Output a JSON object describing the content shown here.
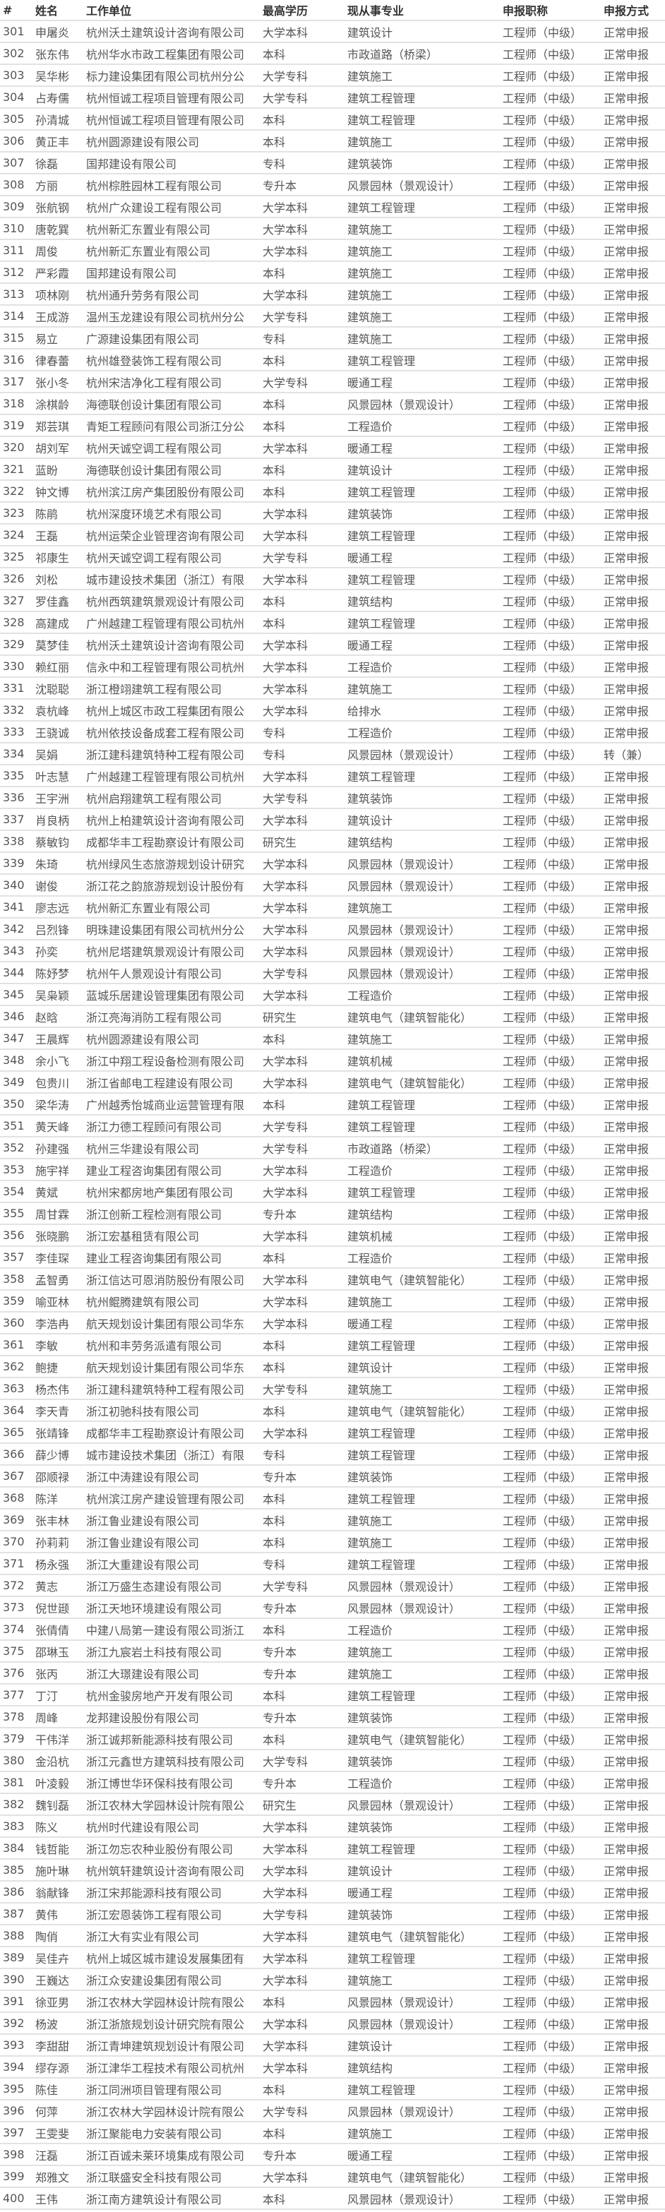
{
  "headers": [
    "#",
    "姓名",
    "工作单位",
    "最高学历",
    "现从事专业",
    "申报职称",
    "申报方式"
  ],
  "rows": [
    [
      "301",
      "申屠炎",
      "杭州沃土建筑设计咨询有限公司",
      "大学本科",
      "建筑设计",
      "工程师（中级）",
      "正常申报"
    ],
    [
      "302",
      "张东伟",
      "杭州华水市政工程集团有限公司",
      "本科",
      "市政道路（桥梁）",
      "工程师（中级）",
      "正常申报"
    ],
    [
      "303",
      "吴华彬",
      "标力建设集团有限公司杭州分公",
      "大学专科",
      "建筑施工",
      "工程师（中级）",
      "正常申报"
    ],
    [
      "304",
      "占寿儒",
      "杭州恒诚工程项目管理有限公司",
      "大学专科",
      "建筑工程管理",
      "工程师（中级）",
      "正常申报"
    ],
    [
      "305",
      "孙清城",
      "杭州恒诚工程项目管理有限公司",
      "本科",
      "建筑工程管理",
      "工程师（中级）",
      "正常申报"
    ],
    [
      "306",
      "黄正丰",
      "杭州圆源建设有限公司",
      "本科",
      "建筑施工",
      "工程师（中级）",
      "正常申报"
    ],
    [
      "307",
      "徐磊",
      "国邦建设有限公司",
      "专科",
      "建筑装饰",
      "工程师（中级）",
      "正常申报"
    ],
    [
      "308",
      "方丽",
      "杭州棕胜园林工程有限公司",
      "专升本",
      "风景园林（景观设计）",
      "工程师（中级）",
      "正常申报"
    ],
    [
      "309",
      "张航钢",
      "杭州广众建设工程有限公司",
      "大学本科",
      "建筑工程管理",
      "工程师（中级）",
      "正常申报"
    ],
    [
      "310",
      "唐乾巽",
      "杭州新汇东置业有限公司",
      "大学本科",
      "建筑施工",
      "工程师（中级）",
      "正常申报"
    ],
    [
      "311",
      "周俊",
      "杭州新汇东置业有限公司",
      "大学本科",
      "建筑施工",
      "工程师（中级）",
      "正常申报"
    ],
    [
      "312",
      "严彩霞",
      "国邦建设有限公司",
      "本科",
      "建筑施工",
      "工程师（中级）",
      "正常申报"
    ],
    [
      "313",
      "项林刚",
      "杭州通升劳务有限公司",
      "大学本科",
      "建筑施工",
      "工程师（中级）",
      "正常申报"
    ],
    [
      "314",
      "王成游",
      "温州玉龙建设有限公司杭州分公",
      "大学专科",
      "建筑施工",
      "工程师（中级）",
      "正常申报"
    ],
    [
      "315",
      "易立",
      "广源建设集团有限公司",
      "专科",
      "建筑施工",
      "工程师（中级）",
      "正常申报"
    ],
    [
      "316",
      "律春蕾",
      "杭州雄登装饰工程有限公司",
      "本科",
      "建筑工程管理",
      "工程师（中级）",
      "正常申报"
    ],
    [
      "317",
      "张小冬",
      "杭州宋洁净化工程有限公司",
      "大学专科",
      "暖通工程",
      "工程师（中级）",
      "正常申报"
    ],
    [
      "318",
      "涂棋龄",
      "海德联创设计集团有限公司",
      "本科",
      "风景园林（景观设计）",
      "工程师（中级）",
      "正常申报"
    ],
    [
      "319",
      "郑芸琪",
      "青矩工程顾问有限公司浙江分公",
      "本科",
      "工程造价",
      "工程师（中级）",
      "正常申报"
    ],
    [
      "320",
      "胡刘军",
      "杭州天诚空调工程有限公司",
      "大学本科",
      "暖通工程",
      "工程师（中级）",
      "正常申报"
    ],
    [
      "321",
      "蓝盼",
      "海德联创设计集团有限公司",
      "本科",
      "建筑设计",
      "工程师（中级）",
      "正常申报"
    ],
    [
      "322",
      "钟文博",
      "杭州滨江房产集团股份有限公司",
      "本科",
      "建筑工程管理",
      "工程师（中级）",
      "正常申报"
    ],
    [
      "323",
      "陈鹃",
      "杭州深度环境艺术有限公司",
      "大学本科",
      "建筑装饰",
      "工程师（中级）",
      "正常申报"
    ],
    [
      "324",
      "王磊",
      "杭州运荣企业管理咨询有限公司",
      "大学本科",
      "建筑工程管理",
      "工程师（中级）",
      "正常申报"
    ],
    [
      "325",
      "祁康生",
      "杭州天诚空调工程有限公司",
      "大学专科",
      "暖通工程",
      "工程师（中级）",
      "正常申报"
    ],
    [
      "326",
      "刘松",
      "城市建设技术集团（浙江）有限",
      "大学本科",
      "建筑工程管理",
      "工程师（中级）",
      "正常申报"
    ],
    [
      "327",
      "罗佳鑫",
      "杭州西筑建筑景观设计有限公司",
      "本科",
      "建筑结构",
      "工程师（中级）",
      "正常申报"
    ],
    [
      "328",
      "高建成",
      "广州越建工程管理有限公司杭州",
      "本科",
      "建筑工程管理",
      "工程师（中级）",
      "正常申报"
    ],
    [
      "329",
      "莫梦佳",
      "杭州沃土建筑设计咨询有限公司",
      "大学本科",
      "暖通工程",
      "工程师（中级）",
      "正常申报"
    ],
    [
      "330",
      "赖红丽",
      "信永中和工程管理有限公司杭州",
      "大学本科",
      "工程造价",
      "工程师（中级）",
      "正常申报"
    ],
    [
      "331",
      "沈聪聪",
      "浙江橙翊建筑工程有限公司",
      "大学本科",
      "建筑施工",
      "工程师（中级）",
      "正常申报"
    ],
    [
      "332",
      "袁杭峰",
      "杭州上城区市政工程集团有限公",
      "大学本科",
      "给排水",
      "工程师（中级）",
      "正常申报"
    ],
    [
      "333",
      "王骁诚",
      "杭州依技设备成套工程有限公司",
      "专科",
      "工程造价",
      "工程师（中级）",
      "正常申报"
    ],
    [
      "334",
      "吴娟",
      "浙江建科建筑特种工程有限公司",
      "专科",
      "风景园林（景观设计）",
      "工程师（中级）",
      "转（兼）"
    ],
    [
      "335",
      "叶志慧",
      "广州越建工程管理有限公司杭州",
      "大学本科",
      "建筑工程管理",
      "工程师（中级）",
      "正常申报"
    ],
    [
      "336",
      "王宇洲",
      "杭州启翔建筑工程有限公司",
      "大学专科",
      "建筑装饰",
      "工程师（中级）",
      "正常申报"
    ],
    [
      "337",
      "肖良柄",
      "杭州上柏建筑设计咨询有限公司",
      "大学本科",
      "建筑设计",
      "工程师（中级）",
      "正常申报"
    ],
    [
      "338",
      "蔡敏钧",
      "成都华丰工程勘察设计有限公司",
      "研究生",
      "建筑结构",
      "工程师（中级）",
      "正常申报"
    ],
    [
      "339",
      "朱琦",
      "杭州绿风生态旅游规划设计研究",
      "大学本科",
      "风景园林（景观设计）",
      "工程师（中级）",
      "正常申报"
    ],
    [
      "340",
      "谢俊",
      "浙江花之韵旅游规划设计股份有",
      "大学本科",
      "风景园林（景观设计）",
      "工程师（中级）",
      "正常申报"
    ],
    [
      "341",
      "廖志远",
      "杭州新汇东置业有限公司",
      "大学本科",
      "建筑施工",
      "工程师（中级）",
      "正常申报"
    ],
    [
      "342",
      "吕烈锋",
      "明珠建设集团有限公司杭州分公",
      "大学本科",
      "风景园林（景观设计）",
      "工程师（中级）",
      "正常申报"
    ],
    [
      "343",
      "孙奕",
      "杭州尼塔建筑景观设计有限公司",
      "大学本科",
      "风景园林（景观设计）",
      "工程师（中级）",
      "正常申报"
    ],
    [
      "344",
      "陈妤梦",
      "杭州午人景观设计有限公司",
      "大学专科",
      "风景园林（景观设计）",
      "工程师（中级）",
      "正常申报"
    ],
    [
      "345",
      "吴枭颖",
      "蓝城乐居建设管理集团有限公司",
      "大学本科",
      "工程造价",
      "工程师（中级）",
      "正常申报"
    ],
    [
      "346",
      "赵晗",
      "浙江亮海消防工程有限公司",
      "研究生",
      "建筑电气（建筑智能化）",
      "工程师（中级）",
      "正常申报"
    ],
    [
      "347",
      "王晨辉",
      "杭州圆源建设有限公司",
      "本科",
      "建筑施工",
      "工程师（中级）",
      "正常申报"
    ],
    [
      "348",
      "余小飞",
      "浙江中翔工程设备检测有限公司",
      "大学本科",
      "建筑机械",
      "工程师（中级）",
      "正常申报"
    ],
    [
      "349",
      "包贵川",
      "浙江省邮电工程建设有限公司",
      "大学本科",
      "建筑电气（建筑智能化）",
      "工程师（中级）",
      "正常申报"
    ],
    [
      "350",
      "梁华涛",
      "广州越秀怡城商业运营管理有限",
      "本科",
      "建筑工程管理",
      "工程师（中级）",
      "正常申报"
    ],
    [
      "351",
      "黄天峰",
      "浙江力德工程顾问有限公司",
      "大学专科",
      "建筑工程管理",
      "工程师（中级）",
      "正常申报"
    ],
    [
      "352",
      "孙建强",
      "杭州三华建设有限公司",
      "大学专科",
      "市政道路（桥梁）",
      "工程师（中级）",
      "正常申报"
    ],
    [
      "353",
      "施宇祥",
      "建业工程咨询集团有限公司",
      "大学本科",
      "工程造价",
      "工程师（中级）",
      "正常申报"
    ],
    [
      "354",
      "黄斌",
      "杭州宋都房地产集团有限公司",
      "大学本科",
      "建筑工程管理",
      "工程师（中级）",
      "正常申报"
    ],
    [
      "355",
      "周甘霖",
      "浙江创新工程检测有限公司",
      "专升本",
      "建筑结构",
      "工程师（中级）",
      "正常申报"
    ],
    [
      "356",
      "张晓鹏",
      "浙江宏基租赁有限公司",
      "大学本科",
      "建筑机械",
      "工程师（中级）",
      "正常申报"
    ],
    [
      "357",
      "李佳琛",
      "建业工程咨询集团有限公司",
      "本科",
      "工程造价",
      "工程师（中级）",
      "正常申报"
    ],
    [
      "358",
      "孟智勇",
      "浙江信达可恩消防股份有限公司",
      "大学本科",
      "建筑电气（建筑智能化）",
      "工程师（中级）",
      "正常申报"
    ],
    [
      "359",
      "喻亚林",
      "杭州鲲腾建筑有限公司",
      "大学本科",
      "建筑施工",
      "工程师（中级）",
      "正常申报"
    ],
    [
      "360",
      "李浩冉",
      "航天规划设计集团有限公司华东",
      "大学本科",
      "暖通工程",
      "工程师（中级）",
      "正常申报"
    ],
    [
      "361",
      "李敏",
      "杭州和丰劳务派遣有限公司",
      "本科",
      "建筑工程管理",
      "工程师（中级）",
      "正常申报"
    ],
    [
      "362",
      "鲍捷",
      "航天规划设计集团有限公司华东",
      "本科",
      "建筑设计",
      "工程师（中级）",
      "正常申报"
    ],
    [
      "363",
      "杨杰伟",
      "浙江建科建筑特种工程有限公司",
      "大学专科",
      "建筑施工",
      "工程师（中级）",
      "正常申报"
    ],
    [
      "364",
      "李天青",
      "浙江初驰科技有限公司",
      "本科",
      "建筑电气（建筑智能化）",
      "工程师（中级）",
      "正常申报"
    ],
    [
      "365",
      "张靖锋",
      "成都华丰工程勘察设计有限公司",
      "大学本科",
      "建筑工程管理",
      "工程师（中级）",
      "正常申报"
    ],
    [
      "366",
      "薛少博",
      "城市建设技术集团（浙江）有限",
      "专科",
      "建筑工程管理",
      "工程师（中级）",
      "正常申报"
    ],
    [
      "367",
      "邵顺禄",
      "浙江中涛建设有限公司",
      "专升本",
      "建筑装饰",
      "工程师（中级）",
      "正常申报"
    ],
    [
      "368",
      "陈洋",
      "杭州滨江房产建设管理有限公司",
      "本科",
      "建筑工程管理",
      "工程师（中级）",
      "正常申报"
    ],
    [
      "369",
      "张丰林",
      "浙江鲁业建设有限公司",
      "本科",
      "建筑施工",
      "工程师（中级）",
      "正常申报"
    ],
    [
      "370",
      "孙莉莉",
      "浙江鲁业建设有限公司",
      "本科",
      "建筑施工",
      "工程师（中级）",
      "正常申报"
    ],
    [
      "371",
      "杨永强",
      "浙江大重建设有限公司",
      "专科",
      "建筑工程管理",
      "工程师（中级）",
      "正常申报"
    ],
    [
      "372",
      "黄志",
      "浙江万盛生态建设有限公司",
      "大学专科",
      "风景园林（景观设计）",
      "工程师（中级）",
      "正常申报"
    ],
    [
      "373",
      "倪世颋",
      "浙江天地环境建设有限公司",
      "专升本",
      "风景园林（景观设计）",
      "工程师（中级）",
      "正常申报"
    ],
    [
      "374",
      "张倩倩",
      "中建八局第一建设有限公司浙江",
      "本科",
      "工程造价",
      "工程师（中级）",
      "正常申报"
    ],
    [
      "375",
      "邵琳玉",
      "浙江九宸岩土科技有限公司",
      "专升本",
      "建筑施工",
      "工程师（中级）",
      "正常申报"
    ],
    [
      "376",
      "张丙",
      "浙江大璟建设有限公司",
      "专升本",
      "建筑施工",
      "工程师（中级）",
      "正常申报"
    ],
    [
      "377",
      "丁汀",
      "杭州金骏房地产开发有限公司",
      "本科",
      "建筑工程管理",
      "工程师（中级）",
      "正常申报"
    ],
    [
      "378",
      "周峰",
      "龙邦建设股份有限公司",
      "专升本",
      "建筑装饰",
      "工程师（中级）",
      "正常申报"
    ],
    [
      "379",
      "干伟洋",
      "浙江诚邦新能源科技有限公司",
      "本科",
      "建筑电气（建筑智能化）",
      "工程师（中级）",
      "正常申报"
    ],
    [
      "380",
      "金沿杭",
      "浙江元鑫世方建筑科技有限公司",
      "大学专科",
      "建筑装饰",
      "工程师（中级）",
      "正常申报"
    ],
    [
      "381",
      "叶凌毅",
      "浙江博世华环保科技有限公司",
      "专升本",
      "工程造价",
      "工程师（中级）",
      "正常申报"
    ],
    [
      "382",
      "魏钊磊",
      "浙江农林大学园林设计院有限公",
      "研究生",
      "风景园林（景观设计）",
      "工程师（中级）",
      "正常申报"
    ],
    [
      "383",
      "陈义",
      "杭州时代建设有限公司",
      "大学本科",
      "建筑装饰",
      "工程师（中级）",
      "正常申报"
    ],
    [
      "384",
      "钱哲能",
      "浙江勿忘农种业股份有限公司",
      "大学本科",
      "建筑工程管理",
      "工程师（中级）",
      "正常申报"
    ],
    [
      "385",
      "施叶琳",
      "杭州筑轩建筑设计咨询有限公司",
      "大学本科",
      "建筑设计",
      "工程师（中级）",
      "正常申报"
    ],
    [
      "386",
      "翁献锋",
      "浙江宋邦能源科技有限公司",
      "大学本科",
      "暖通工程",
      "工程师（中级）",
      "正常申报"
    ],
    [
      "387",
      "黄伟",
      "浙江宏恩装饰工程有限公司",
      "大学专科",
      "建筑装饰",
      "工程师（中级）",
      "正常申报"
    ],
    [
      "388",
      "陶俏",
      "浙江大有实业有限公司",
      "大学本科",
      "建筑电气（建筑智能化）",
      "工程师（中级）",
      "正常申报"
    ],
    [
      "389",
      "吴佳卉",
      "杭州上城区城市建设发展集团有",
      "大学本科",
      "建筑工程管理",
      "工程师（中级）",
      "正常申报"
    ],
    [
      "390",
      "王巍达",
      "浙江众安建设集团有限公司",
      "大学本科",
      "建筑施工",
      "工程师（中级）",
      "正常申报"
    ],
    [
      "391",
      "徐亚男",
      "浙江农林大学园林设计院有限公",
      "本科",
      "风景园林（景观设计）",
      "工程师（中级）",
      "正常申报"
    ],
    [
      "392",
      "杨波",
      "浙江浙旅规划设计研究院有限公",
      "大学本科",
      "风景园林（景观设计）",
      "工程师（中级）",
      "正常申报"
    ],
    [
      "393",
      "李甜甜",
      "浙江青坤建筑规划设计有限公司",
      "大学本科",
      "建筑设计",
      "工程师（中级）",
      "正常申报"
    ],
    [
      "394",
      "缪存源",
      "浙江津华工程技术有限公司杭州",
      "大学本科",
      "建筑结构",
      "工程师（中级）",
      "正常申报"
    ],
    [
      "395",
      "陈佳",
      "浙江同洲项目管理有限公司",
      "本科",
      "建筑工程管理",
      "工程师（中级）",
      "正常申报"
    ],
    [
      "396",
      "何萍",
      "浙江农林大学园林设计院有限公",
      "大学专科",
      "风景园林（景观设计）",
      "工程师（中级）",
      "正常申报"
    ],
    [
      "397",
      "王雯斐",
      "浙江聚能电力安装有限公司",
      "本科",
      "建筑施工",
      "工程师（中级）",
      "正常申报"
    ],
    [
      "398",
      "汪磊",
      "浙江百诚未莱环境集成有限公司",
      "专升本",
      "暖通工程",
      "工程师（中级）",
      "正常申报"
    ],
    [
      "399",
      "郑雅文",
      "浙江联盛安全科技有限公司",
      "大学本科",
      "建筑电气（建筑智能化）",
      "工程师（中级）",
      "正常申报"
    ],
    [
      "400",
      "王伟",
      "浙江南方建筑设计有限公司",
      "本科",
      "风景园林（景观设计）",
      "工程师（中级）",
      "正常申报"
    ]
  ]
}
